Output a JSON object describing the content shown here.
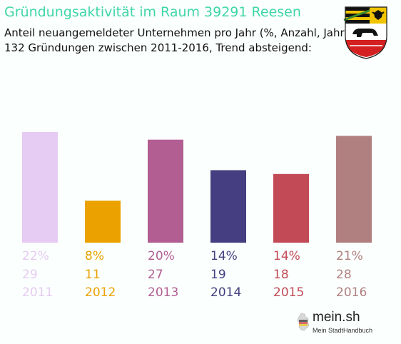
{
  "header": {
    "title": "Gründungsaktivität im Raum 39291 Reesen",
    "subtitle_line1": "Anteil neuangemeldeter Unternehmen pro Jahr (%, Anzahl, Jahr)",
    "subtitle_line2": "132 Gründungen zwischen 2011-2016, Trend absteigend:"
  },
  "coat_of_arms": {
    "icon": "saxony-anhalt-coat-of-arms-icon"
  },
  "branding": {
    "name": "mein.sh",
    "tagline": "Mein StadtHandbuch",
    "icon": "germany-map-icon"
  },
  "chart_data": {
    "type": "bar",
    "categories": [
      "2011",
      "2012",
      "2013",
      "2014",
      "2015",
      "2016"
    ],
    "percent_labels": [
      "22%",
      "8%",
      "20%",
      "14%",
      "14%",
      "21%"
    ],
    "values": [
      29,
      11,
      27,
      19,
      18,
      28
    ],
    "colors": [
      "#e6cbf3",
      "#eba200",
      "#b25e92",
      "#453e80",
      "#c24a56",
      "#b08080"
    ],
    "title": "Gründungsaktivität im Raum 39291 Reesen",
    "ylim": [
      0,
      29
    ]
  }
}
